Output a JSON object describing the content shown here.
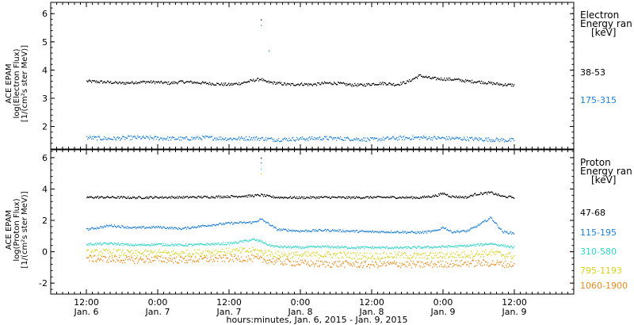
{
  "chart_data": [
    {
      "type": "scatter",
      "ylabel_lines": [
        "ACE EPAM",
        "log(Electron Flux)",
        "[1/(cm²s ster MeV)]"
      ],
      "legend_title": [
        "Electron",
        "Energy ran",
        "[keV]"
      ],
      "ylim": [
        1.2,
        6.4
      ],
      "yticks": [
        2,
        3,
        4,
        5,
        6
      ],
      "series": [
        {
          "name": "38-53",
          "color": "#000000",
          "x": [
            0,
            6,
            12,
            18,
            24,
            30,
            36,
            42,
            48,
            54,
            60,
            66,
            72,
            78,
            84,
            88,
            90,
            96,
            102,
            108,
            114,
            120,
            126,
            132,
            138,
            144,
            150,
            156,
            162,
            168,
            174,
            180,
            186,
            192,
            198,
            204,
            210,
            216
          ],
          "values": [
            3.62,
            3.6,
            3.58,
            3.55,
            3.58,
            3.6,
            3.58,
            3.55,
            3.6,
            3.58,
            3.55,
            3.52,
            3.5,
            3.55,
            3.65,
            3.7,
            3.6,
            3.55,
            3.5,
            3.52,
            3.5,
            3.55,
            3.55,
            3.5,
            3.48,
            3.52,
            3.55,
            3.5,
            3.6,
            3.82,
            3.72,
            3.7,
            3.68,
            3.62,
            3.6,
            3.55,
            3.5,
            3.48
          ]
        },
        {
          "name": "175-315",
          "color": "#1f7fd6",
          "x": [
            0,
            12,
            24,
            36,
            48,
            60,
            72,
            84,
            96,
            108,
            120,
            132,
            144,
            156,
            168,
            180,
            192,
            204,
            216
          ],
          "values": [
            1.62,
            1.58,
            1.62,
            1.6,
            1.58,
            1.62,
            1.58,
            1.6,
            1.55,
            1.58,
            1.6,
            1.58,
            1.55,
            1.6,
            1.62,
            1.6,
            1.58,
            1.55,
            1.52
          ]
        }
      ]
    },
    {
      "type": "scatter",
      "ylabel_lines": [
        "ACE EPAM",
        "log(Proton Flux)",
        "[1/(cm²s ster MeV)]"
      ],
      "legend_title": [
        "Proton",
        "Energy ran",
        "[keV]"
      ],
      "ylim": [
        -2.7,
        6.5
      ],
      "yticks": [
        -2,
        0,
        2,
        4,
        6
      ],
      "series": [
        {
          "name": "47-68",
          "color": "#000000",
          "x": [
            0,
            12,
            24,
            36,
            48,
            60,
            72,
            84,
            88,
            92,
            96,
            108,
            120,
            132,
            144,
            156,
            168,
            176,
            180,
            184,
            192,
            196,
            204,
            210,
            216
          ],
          "values": [
            3.5,
            3.5,
            3.48,
            3.5,
            3.5,
            3.52,
            3.55,
            3.6,
            3.65,
            3.55,
            3.5,
            3.48,
            3.5,
            3.48,
            3.5,
            3.5,
            3.48,
            3.6,
            3.75,
            3.55,
            3.5,
            3.7,
            3.8,
            3.55,
            3.5
          ]
        },
        {
          "name": "115-195",
          "color": "#1f7fd6",
          "x": [
            0,
            12,
            24,
            36,
            48,
            60,
            72,
            84,
            88,
            92,
            96,
            108,
            120,
            132,
            144,
            156,
            168,
            176,
            180,
            184,
            192,
            196,
            204,
            210,
            216
          ],
          "values": [
            1.45,
            1.7,
            1.55,
            1.6,
            1.5,
            1.7,
            1.85,
            1.9,
            2.1,
            1.8,
            1.45,
            1.35,
            1.4,
            1.35,
            1.3,
            1.3,
            1.25,
            1.35,
            1.6,
            1.3,
            1.35,
            1.6,
            2.2,
            1.3,
            1.2
          ]
        },
        {
          "name": "310-580",
          "color": "#2ed6c8",
          "x": [
            0,
            12,
            24,
            36,
            48,
            60,
            72,
            84,
            88,
            92,
            96,
            108,
            120,
            132,
            144,
            156,
            168,
            180,
            192,
            204,
            216
          ],
          "values": [
            0.5,
            0.55,
            0.45,
            0.5,
            0.45,
            0.5,
            0.55,
            0.8,
            0.7,
            0.45,
            0.35,
            0.3,
            0.35,
            0.3,
            0.3,
            0.28,
            0.3,
            0.35,
            0.4,
            0.55,
            0.3
          ]
        },
        {
          "name": "795-1193",
          "color": "#d9d21a",
          "x": [
            0,
            12,
            24,
            36,
            48,
            60,
            72,
            84,
            96,
            108,
            120,
            132,
            144,
            156,
            168,
            180,
            192,
            204,
            216
          ],
          "values": [
            -0.05,
            0.0,
            -0.1,
            -0.05,
            -0.1,
            0.0,
            0.05,
            0.1,
            -0.15,
            -0.2,
            -0.15,
            -0.2,
            -0.25,
            -0.2,
            -0.25,
            -0.2,
            -0.15,
            -0.05,
            -0.25
          ]
        },
        {
          "name": "1060-1900",
          "color": "#ee8a1a",
          "x": [
            0,
            12,
            24,
            36,
            48,
            60,
            72,
            84,
            96,
            108,
            120,
            132,
            144,
            156,
            168,
            180,
            192,
            204,
            216
          ],
          "values": [
            -0.4,
            -0.45,
            -0.5,
            -0.45,
            -0.5,
            -0.45,
            -0.4,
            -0.4,
            -0.6,
            -0.7,
            -0.75,
            -0.75,
            -0.8,
            -0.75,
            -0.8,
            -0.75,
            -0.7,
            -0.7,
            -0.8
          ]
        }
      ]
    }
  ],
  "x_axis": {
    "xlim": [
      -18,
      246
    ],
    "ticks": [
      {
        "x": 0,
        "time": "12:00",
        "date": "Jan. 6"
      },
      {
        "x": 36,
        "time": "0:00",
        "date": "Jan. 7"
      },
      {
        "x": 72,
        "time": "12:00",
        "date": "Jan. 7"
      },
      {
        "x": 108,
        "time": "0:00",
        "date": "Jan. 8"
      },
      {
        "x": 144,
        "time": "12:00",
        "date": "Jan. 8"
      },
      {
        "x": 180,
        "time": "0:00",
        "date": "Jan. 9"
      },
      {
        "x": 216,
        "time": "12:00",
        "date": "Jan. 9"
      }
    ],
    "label": "hours:minutes, Jan.  6, 2015 - Jan.  9, 2015"
  }
}
